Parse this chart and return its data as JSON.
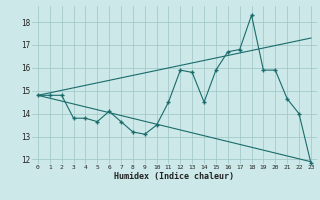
{
  "xlabel": "Humidex (Indice chaleur)",
  "x_ticks": [
    0,
    1,
    2,
    3,
    4,
    5,
    6,
    7,
    8,
    9,
    10,
    11,
    12,
    13,
    14,
    15,
    16,
    17,
    18,
    19,
    20,
    21,
    22,
    23
  ],
  "ylim": [
    11.8,
    18.7
  ],
  "xlim": [
    -0.5,
    23.5
  ],
  "yticks": [
    12,
    13,
    14,
    15,
    16,
    17,
    18
  ],
  "background_color": "#cce8e8",
  "grid_color": "#9dc4c4",
  "line_color": "#1a6b6b",
  "line1_x": [
    0,
    1,
    2,
    3,
    4,
    5,
    6,
    7,
    8,
    9,
    10,
    11,
    12,
    13,
    14,
    15,
    16,
    17,
    18,
    19,
    20,
    21,
    22,
    23
  ],
  "line1_y": [
    14.8,
    14.8,
    14.8,
    13.8,
    13.8,
    13.65,
    14.1,
    13.65,
    13.2,
    13.1,
    13.5,
    14.5,
    15.9,
    15.8,
    14.5,
    15.9,
    16.7,
    16.8,
    18.3,
    15.9,
    15.9,
    14.65,
    14.0,
    11.85
  ],
  "line2_x": [
    0,
    23
  ],
  "line2_y": [
    14.8,
    11.9
  ],
  "line3_x": [
    0,
    23
  ],
  "line3_y": [
    14.8,
    17.3
  ],
  "figsize": [
    3.2,
    2.0
  ],
  "dpi": 100
}
